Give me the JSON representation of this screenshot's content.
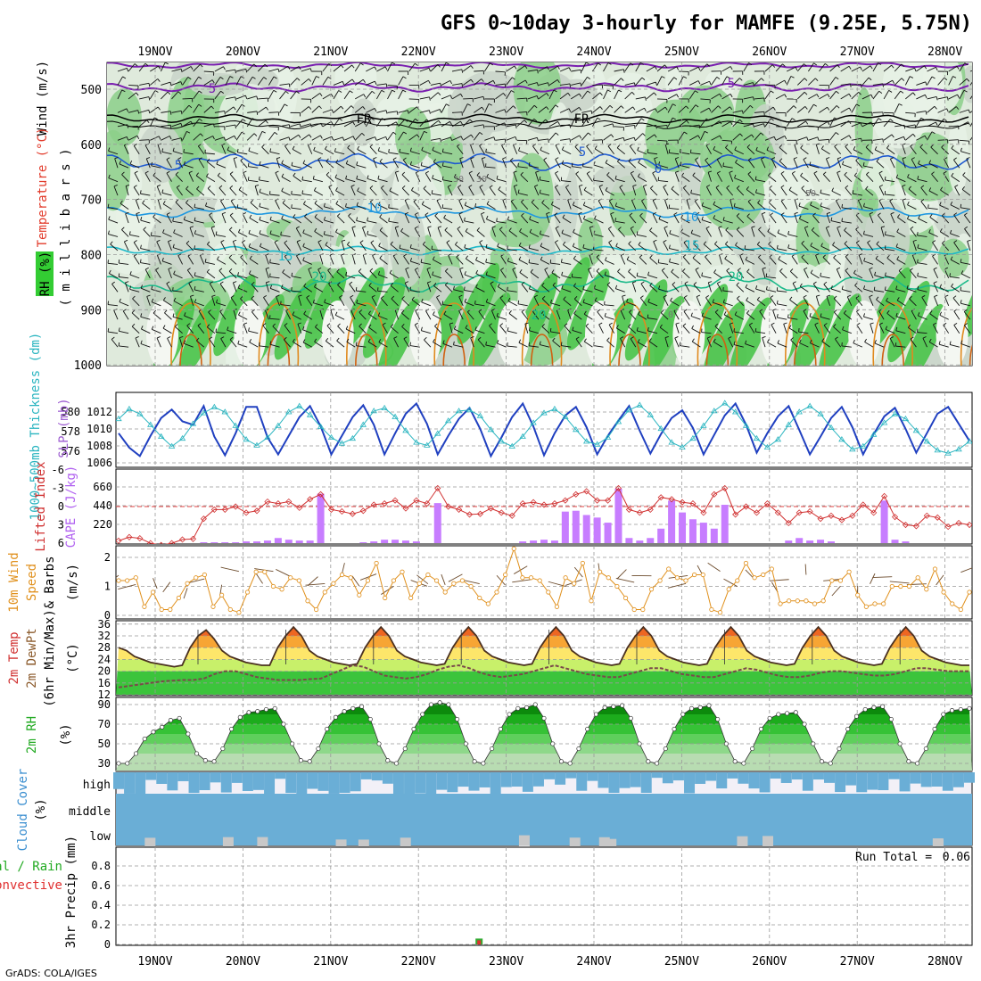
{
  "title": "GFS 0~10day 3-hourly for MAMFE (9.25E, 5.75N)",
  "credit": "GrADS: COLA/IGES",
  "dates": [
    "19NOV",
    "20NOV",
    "21NOV",
    "22NOV",
    "23NOV",
    "24NOV",
    "25NOV",
    "26NOV",
    "27NOV",
    "28NOV"
  ],
  "colors": {
    "rh_green": "#33cc33",
    "temp_contour_orange": "#e08a1e",
    "slp_line": "#2040c0",
    "thickness_line": "#2ab5c0",
    "cape_bar": "#c77dff",
    "lifted_index_line": "#d03030",
    "wind_speed_line": "#e0901c",
    "cloud_blue": "#6aaed6",
    "precip_green": "#33aa33",
    "precip_red": "#e03030"
  },
  "panels": {
    "upper": {
      "labels": {
        "wind": "Wind (m/s)",
        "temp": "Temperature (°C)",
        "rh": "RH (%)",
        "pres": "( m i l l i b a r s )"
      },
      "pressure_ticks": [
        "500",
        "600",
        "700",
        "800",
        "900",
        "1000"
      ],
      "contour_labels": [
        "5",
        "5",
        "FR",
        "FR",
        "5",
        "5",
        "0",
        "10",
        "10",
        "15",
        "15",
        "20",
        "20",
        "20",
        "30",
        "30",
        "50",
        "0"
      ]
    },
    "slp": {
      "labels": {
        "slp": "SLP (mb)",
        "thk": "1000~500mb Thickness (dm)"
      },
      "slp_ticks": [
        "1012",
        "1010",
        "1008",
        "1006"
      ],
      "thk_ticks": [
        "580",
        "578",
        "576"
      ]
    },
    "cape": {
      "labels": {
        "li": "Lifted Index",
        "cape": "CAPE (J/kg)"
      },
      "li_ticks": [
        "-6",
        "-3",
        "0",
        "3",
        "6"
      ],
      "cape_ticks": [
        "660",
        "440",
        "220"
      ]
    },
    "wind": {
      "labels": {
        "l1": "10m Wind",
        "l2": "Speed",
        "l3": "& Barbs",
        "unit": "(m/s)"
      },
      "ticks": [
        "2",
        "1",
        "0"
      ]
    },
    "temp": {
      "labels": {
        "l1": "2m Temp",
        "l2": "2m DewPt",
        "l3": "(6hr Min/Max)",
        "unit": "(°C)"
      },
      "ticks": [
        "36",
        "32",
        "28",
        "24",
        "20",
        "16",
        "12"
      ]
    },
    "rh": {
      "labels": {
        "l1": "2m RH",
        "unit": "(%)"
      },
      "ticks": [
        "90",
        "70",
        "50",
        "30"
      ]
    },
    "cloud": {
      "labels": {
        "l1": "Cloud Cover",
        "unit": "(%)"
      },
      "levels": [
        "high",
        "middle",
        "low"
      ]
    },
    "precip": {
      "labels": {
        "l1": "Total / Rain",
        "l2": "Convective",
        "y": "3hr Precip (mm)"
      },
      "ticks": [
        "0.8",
        "0.6",
        "0.4",
        "0.2",
        "0"
      ],
      "run_total_label": "Run Total =",
      "run_total": "0.06"
    }
  },
  "chart_data": [
    {
      "type": "line",
      "panel": "SLP / thickness",
      "x_unit": "3-hourly steps from 18NOV 12Z",
      "series": [
        {
          "name": "SLP (mb)",
          "values": [
            1009.5,
            1007.8,
            1006.8,
            1009.2,
            1011.3,
            1012.3,
            1010.9,
            1010.5,
            1012.7,
            1009.1,
            1006.9,
            1009.5,
            1012.6,
            1012.6,
            1009.0,
            1007.0,
            1009.2,
            1011.4,
            1012.7,
            1010.3,
            1007.0,
            1009.2,
            1011.4,
            1012.8,
            1010.5,
            1007.0,
            1009.5,
            1011.8,
            1013.0,
            1010.6,
            1007.0,
            1009.2,
            1011.2,
            1012.5,
            1010.0,
            1006.8,
            1009.0,
            1011.4,
            1013.0,
            1010.3,
            1006.9,
            1009.5,
            1011.6,
            1012.6,
            1010.2,
            1007.0,
            1009.2,
            1011.0,
            1012.7,
            1009.8,
            1007.1,
            1009.4,
            1011.3,
            1012.2,
            1010.1,
            1007.0,
            1009.3,
            1011.6,
            1013.0,
            1010.5,
            1007.2,
            1009.5,
            1011.5,
            1012.7,
            1009.9,
            1007.0,
            1009.1,
            1011.3,
            1012.6,
            1010.2,
            1007.0,
            1009.4,
            1011.5,
            1012.5,
            1010.0,
            1007.2,
            1009.5,
            1011.8,
            1012.6,
            1010.6,
            1008.6
          ]
        },
        {
          "name": "1000~500mb Thickness (dm)",
          "values": [
            579.3,
            580.3,
            579.8,
            578.7,
            577.5,
            576.5,
            577.3,
            578.8,
            579.9,
            580.5,
            580.0,
            578.6,
            577.2,
            576.6,
            577.4,
            578.6,
            580.0,
            580.6,
            579.7,
            578.5,
            577.4,
            576.8,
            577.3,
            578.7,
            580.1,
            580.4,
            579.5,
            578.1,
            576.9,
            576.6,
            577.8,
            579.1,
            580.1,
            580.2,
            579.6,
            578.2,
            577.0,
            576.5,
            577.5,
            578.9,
            579.9,
            580.3,
            579.5,
            578.2,
            577.0,
            576.7,
            577.4,
            579.0,
            580.2,
            580.7,
            579.7,
            578.3,
            576.9,
            576.4,
            577.3,
            578.6,
            580.1,
            580.9,
            580.0,
            578.6,
            577.3,
            576.4,
            577.2,
            578.7,
            580.0,
            580.6,
            579.8,
            578.4,
            577.2,
            576.2,
            576.5,
            577.7,
            578.9,
            579.8,
            579.3,
            578.1,
            577.0,
            576.1,
            575.8,
            576.2,
            577.0
          ]
        }
      ]
    },
    {
      "type": "bar",
      "panel": "CAPE / Lifted Index",
      "series": [
        {
          "name": "CAPE (J/kg)",
          "values": [
            0,
            0,
            0,
            0,
            0,
            0,
            0,
            0,
            10,
            10,
            10,
            10,
            20,
            20,
            30,
            60,
            40,
            30,
            30,
            580,
            0,
            0,
            0,
            10,
            20,
            40,
            40,
            30,
            20,
            0,
            470,
            0,
            0,
            0,
            0,
            0,
            0,
            0,
            20,
            30,
            40,
            30,
            370,
            380,
            330,
            300,
            240,
            640,
            60,
            30,
            60,
            170,
            500,
            360,
            280,
            240,
            170,
            450,
            0,
            0,
            0,
            0,
            0,
            30,
            60,
            30,
            40,
            20,
            0,
            0,
            0,
            0,
            500,
            40,
            20,
            0,
            0,
            0,
            0,
            0,
            0
          ]
        },
        {
          "name": "Lifted Index",
          "values": [
            5.6,
            5.0,
            5.2,
            6.0,
            6.3,
            6.0,
            5.4,
            5.3,
            2.0,
            0.5,
            0.5,
            0.0,
            1.0,
            0.7,
            -0.8,
            -0.5,
            -0.8,
            0.2,
            -1.2,
            -2.0,
            0.5,
            0.8,
            1.2,
            0.7,
            -0.3,
            -0.5,
            -1.0,
            0.3,
            -1.0,
            -0.5,
            -3.0,
            0.0,
            0.5,
            1.3,
            1.2,
            0.3,
            1.0,
            1.5,
            -0.5,
            -0.7,
            -0.3,
            -0.5,
            -1.0,
            -2.0,
            -2.5,
            -1.0,
            -1.0,
            -3.0,
            0.5,
            1.0,
            0.5,
            -1.5,
            -1.2,
            -0.7,
            -0.5,
            1.0,
            -2.0,
            -3.0,
            1.3,
            0.0,
            1.0,
            -0.5,
            1.0,
            2.7,
            1.0,
            0.8,
            2.0,
            1.5,
            2.2,
            1.5,
            -0.3,
            1.0,
            -1.7,
            1.7,
            3.0,
            3.2,
            1.5,
            1.8,
            3.3,
            2.7,
            3.0
          ]
        }
      ]
    },
    {
      "type": "line",
      "panel": "10m Wind",
      "series": [
        {
          "name": "Speed (m/s)",
          "values": [
            1.2,
            1.2,
            1.3,
            0.3,
            0.8,
            0.2,
            0.2,
            0.6,
            1.1,
            1.3,
            1.4,
            0.3,
            0.7,
            0.2,
            0.1,
            0.8,
            1.5,
            1.5,
            1.0,
            0.9,
            1.3,
            1.2,
            0.5,
            0.2,
            0.8,
            1.1,
            1.4,
            1.3,
            0.7,
            1.2,
            1.8,
            0.6,
            1.2,
            1.5,
            0.6,
            1.1,
            1.4,
            1.2,
            0.8,
            1.1,
            1.2,
            1.0,
            0.6,
            0.4,
            0.8,
            1.4,
            2.3,
            1.3,
            1.3,
            1.2,
            0.8,
            0.3,
            1.3,
            1.1,
            1.8,
            0.5,
            1.5,
            1.3,
            1.0,
            0.6,
            0.2,
            0.2,
            0.9,
            1.2,
            1.6,
            1.3,
            1.2,
            1.4,
            1.4,
            0.2,
            0.1,
            0.9,
            1.2,
            1.8,
            1.3,
            1.4,
            1.6,
            0.4,
            0.5,
            0.5,
            0.5,
            0.4,
            0.5,
            1.2,
            1.2,
            1.5,
            0.7,
            0.3,
            0.4,
            0.4,
            1.0,
            1.0,
            1.0,
            1.3,
            0.9,
            1.6,
            0.8,
            0.4,
            0.2,
            0.8
          ]
        }
      ]
    },
    {
      "type": "area",
      "panel": "2m Temp / DewPt",
      "series": [
        {
          "name": "2m Temp (°C)",
          "values": [
            28,
            27,
            25,
            24,
            23,
            22.5,
            22,
            21.5,
            22,
            28,
            32,
            34,
            31,
            27,
            25,
            24,
            23,
            22.5,
            22,
            22,
            28,
            32,
            35,
            32,
            27,
            25,
            24,
            23,
            22.5,
            22,
            22.5,
            28,
            32,
            35,
            32,
            27,
            25,
            24,
            23,
            22.5,
            22,
            22.5,
            28,
            32,
            35,
            32,
            27,
            25,
            24,
            23,
            22.5,
            22,
            22.5,
            28,
            32,
            35,
            32,
            27,
            25,
            24,
            23,
            22.5,
            22,
            22.5,
            28,
            32,
            35,
            32,
            27,
            25,
            24,
            23,
            22.5,
            22,
            22.5,
            28,
            32,
            35,
            32,
            27,
            25,
            24,
            23,
            22.5,
            22,
            22.5,
            28,
            32,
            35,
            32,
            27,
            25,
            24,
            23,
            22.5,
            22,
            22.5,
            28,
            32,
            35,
            32,
            27,
            25,
            24,
            23,
            22.5,
            22,
            22
          ]
        },
        {
          "name": "2m DewPt (°C)",
          "values": [
            14.5,
            15,
            15.5,
            16,
            16.5,
            16.8,
            17,
            17,
            17.5,
            19,
            20,
            20,
            19,
            18,
            17.5,
            17,
            17,
            17,
            17.3,
            17.5,
            19,
            20.5,
            22,
            21.5,
            20,
            18.5,
            18,
            17.5,
            18,
            19,
            20.5,
            21.5,
            22,
            21,
            19.5,
            18.5,
            18,
            18.5,
            19,
            20,
            21,
            22,
            21,
            20,
            19,
            18.5,
            18,
            18,
            19,
            20,
            21,
            21,
            20,
            19,
            18.5,
            18,
            18,
            19,
            20,
            21,
            20.5,
            19.5,
            18.5,
            18,
            18,
            18.5,
            19.5,
            20,
            20,
            19.5,
            19,
            18.5,
            18.5,
            19,
            20,
            21,
            21,
            20.5,
            20,
            20,
            20
          ]
        }
      ]
    },
    {
      "type": "area",
      "panel": "2m RH",
      "series": [
        {
          "name": "2m RH (%)",
          "values": [
            30,
            30,
            40,
            55,
            62,
            67,
            74,
            76,
            60,
            40,
            33,
            32,
            45,
            65,
            77,
            82,
            83,
            85,
            86,
            70,
            50,
            33,
            32,
            45,
            65,
            77,
            83,
            86,
            88,
            75,
            50,
            33,
            30,
            45,
            65,
            80,
            90,
            92,
            90,
            75,
            50,
            32,
            30,
            45,
            65,
            80,
            86,
            87,
            90,
            76,
            50,
            32,
            30,
            45,
            65,
            80,
            87,
            88,
            89,
            76,
            50,
            32,
            30,
            45,
            65,
            80,
            86,
            87,
            89,
            75,
            50,
            32,
            30,
            45,
            65,
            76,
            80,
            81,
            82,
            70,
            50,
            32,
            30,
            45,
            65,
            78,
            85,
            87,
            88,
            75,
            50,
            32,
            30,
            45,
            65,
            80,
            84,
            85,
            86
          ]
        }
      ]
    },
    {
      "type": "bar",
      "panel": "3hr Precip",
      "series": [
        {
          "name": "Total / Rain (mm)",
          "values": [
            0.06
          ]
        }
      ]
    }
  ]
}
